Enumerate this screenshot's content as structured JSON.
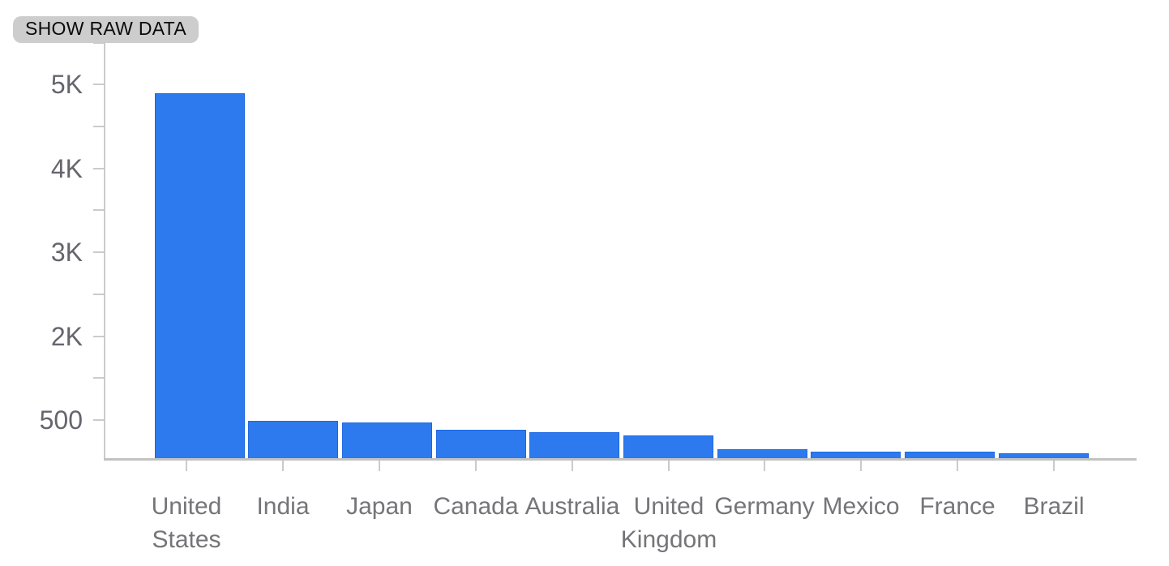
{
  "toolbar": {
    "show_raw_data_label": "SHOW RAW DATA"
  },
  "chart_data": {
    "type": "bar",
    "title": "",
    "xlabel": "",
    "ylabel": "",
    "categories": [
      "United States",
      "India",
      "Japan",
      "Canada",
      "Australia",
      "United Kingdom",
      "Germany",
      "Mexico",
      "France",
      "Brazil"
    ],
    "values": [
      4870,
      500,
      475,
      380,
      345,
      300,
      120,
      90,
      85,
      70
    ],
    "ylim": [
      0,
      5500
    ],
    "y_tick_labels": [
      "5K",
      "4K",
      "3K",
      "2K",
      "500"
    ],
    "grid": "off",
    "legend": "none",
    "bar_color": "#2d7aee",
    "bar_border_color": "#1e68e2",
    "axis_color": "#cbcbcb",
    "y_label_color": "#65656d",
    "x_label_color": "#757579"
  }
}
